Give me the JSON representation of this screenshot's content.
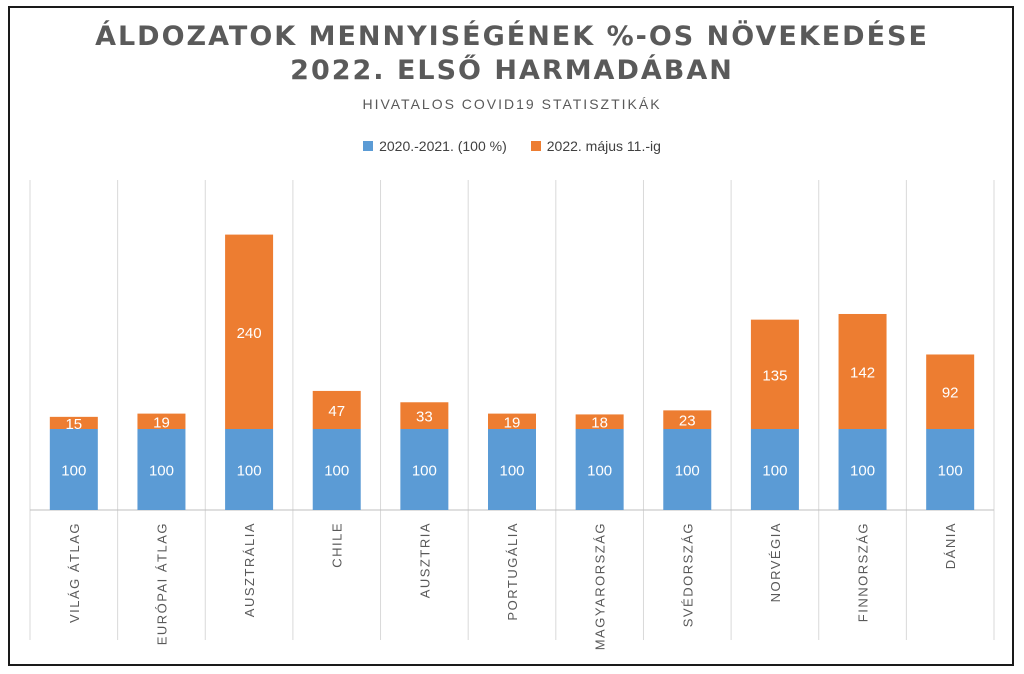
{
  "chart_data": {
    "type": "bar",
    "stacked": true,
    "title_lines": [
      "ÁLDOZATOK MENNYISÉGÉNEK %-OS NÖVEKEDÉSE",
      "2022. ELSŐ HARMADÁBAN"
    ],
    "subtitle": "HIVATALOS COVID19 STATISZTIKÁK",
    "legend_position": "top",
    "grid": "vertical category separators",
    "categories": [
      "VILÁG ÁTLAG",
      "EURÓPAI ÁTLAG",
      "AUSZTRÁLIA",
      "CHILE",
      "AUSZTRIA",
      "PORTUGÁLIA",
      "MAGYARORSZÁG",
      "SVÉDORSZÁG",
      "NORVÉGIA",
      "FINNORSZÁG",
      "DÁNIA"
    ],
    "series": [
      {
        "name": "2020.-2021. (100 %)",
        "color": "#5b9bd5",
        "values": [
          100,
          100,
          100,
          100,
          100,
          100,
          100,
          100,
          100,
          100,
          100
        ]
      },
      {
        "name": "2022. május 11.-ig",
        "color": "#ed7d31",
        "values": [
          15,
          19,
          240,
          47,
          33,
          19,
          18,
          23,
          135,
          142,
          92
        ]
      }
    ],
    "ylim": [
      0,
      370
    ]
  }
}
